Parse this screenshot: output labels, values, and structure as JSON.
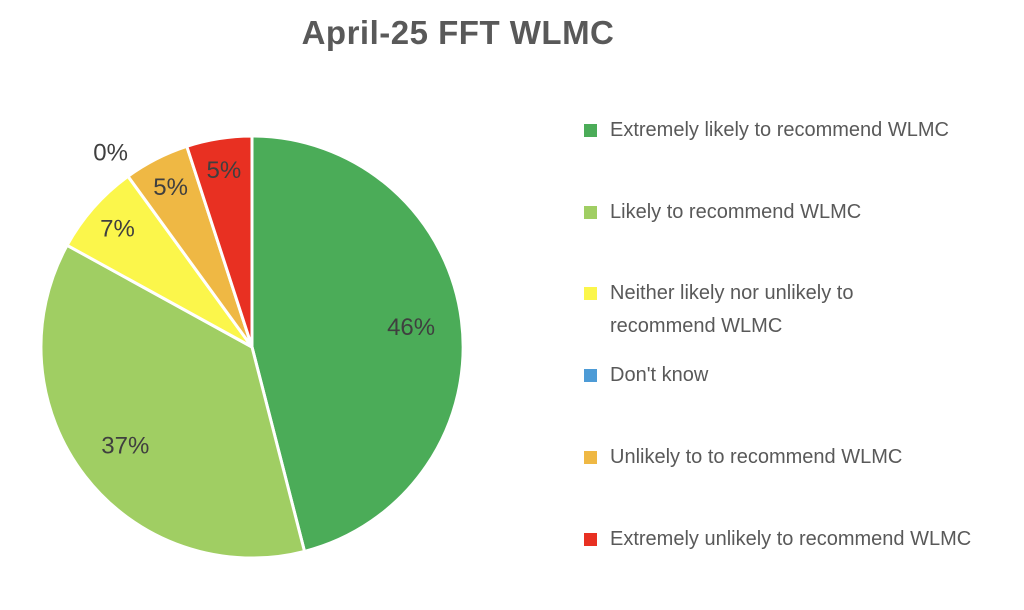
{
  "title": "April-25 FFT WLMC",
  "chart_data": {
    "type": "pie",
    "title": "April-25 FFT WLMC",
    "unit": "percent",
    "direction": "clockwise",
    "start_angle_deg": 0,
    "legend_position": "right",
    "slices": [
      {
        "label": "Extremely likely to recommend WLMC",
        "value": 46,
        "data_label": "46%",
        "color": "#4BAC58",
        "label_r": 0.76,
        "label_outside": false
      },
      {
        "label": "Likely to recommend WLMC",
        "value": 37,
        "data_label": "37%",
        "color": "#A0CE63",
        "label_r": 0.76,
        "label_outside": false
      },
      {
        "label": "Neither likely nor unlikely to recommend WLMC",
        "value": 7,
        "data_label": "7%",
        "color": "#FBF64B",
        "label_r": 0.85,
        "label_outside": false
      },
      {
        "label": "Don't know",
        "value": 0,
        "data_label": "0%",
        "color": "#4D9BD6",
        "label_r": 1.14,
        "label_outside": true
      },
      {
        "label": "Unlikely to to recommend WLMC",
        "value": 5,
        "data_label": "5%",
        "color": "#EFB844",
        "label_r": 0.85,
        "label_outside": false
      },
      {
        "label": "Extremely unlikely to recommend WLMC",
        "value": 5,
        "data_label": "5%",
        "color": "#E83022",
        "label_r": 0.85,
        "label_outside": false
      }
    ]
  }
}
